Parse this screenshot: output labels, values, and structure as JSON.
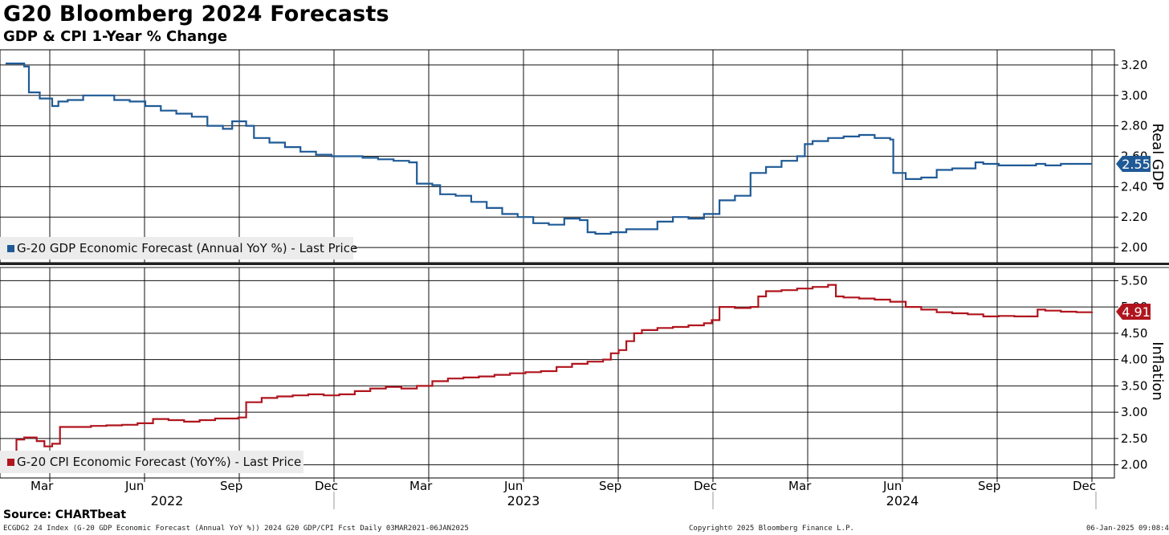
{
  "header": {
    "title": "G20 Bloomberg 2024 Forecasts",
    "subtitle": "GDP & CPI 1-Year % Change"
  },
  "footer": {
    "source": "Source: CHARTbeat",
    "index_text": "ECGDG2 24 Index (G-20 GDP Economic Forecast (Annual YoY %)) 2024 G20 GDP/CPI Fcst  Daily 03MAR2021-06JAN2025",
    "copyright": "Copyright© 2025 Bloomberg Finance L.P.",
    "timestamp": "06-Jan-2025 09:08:48"
  },
  "colors": {
    "gdp": "#1f5a96",
    "cpi": "#b0151e"
  },
  "chart_data": [
    {
      "type": "line",
      "name": "gdp",
      "ylabel": "Real GDP",
      "ylim": [
        1.9,
        3.3
      ],
      "yticks": [
        "2.00",
        "2.20",
        "2.40",
        "2.60",
        "2.80",
        "3.00",
        "3.20"
      ],
      "legend": "G-20 GDP Economic Forecast (Annual YoY %) - Last Price",
      "last_value": "2.55",
      "points": [
        [
          0,
          3.21
        ],
        [
          1.2,
          3.19
        ],
        [
          1.5,
          3.02
        ],
        [
          2.2,
          2.98
        ],
        [
          3,
          2.93
        ],
        [
          3.4,
          2.96
        ],
        [
          4,
          2.97
        ],
        [
          5,
          3.0
        ],
        [
          6,
          3.0
        ],
        [
          7,
          2.97
        ],
        [
          8,
          2.96
        ],
        [
          9,
          2.93
        ],
        [
          10,
          2.9
        ],
        [
          11,
          2.88
        ],
        [
          12,
          2.86
        ],
        [
          13,
          2.8
        ],
        [
          14,
          2.78
        ],
        [
          14.6,
          2.83
        ],
        [
          15.5,
          2.8
        ],
        [
          16,
          2.72
        ],
        [
          17,
          2.69
        ],
        [
          18,
          2.66
        ],
        [
          19,
          2.63
        ],
        [
          20,
          2.61
        ],
        [
          21,
          2.6
        ],
        [
          22,
          2.6
        ],
        [
          23,
          2.59
        ],
        [
          24,
          2.58
        ],
        [
          25,
          2.57
        ],
        [
          26,
          2.56
        ],
        [
          26.5,
          2.42
        ],
        [
          27.5,
          2.41
        ],
        [
          28,
          2.35
        ],
        [
          29,
          2.34
        ],
        [
          30,
          2.3
        ],
        [
          31,
          2.26
        ],
        [
          32,
          2.22
        ],
        [
          33,
          2.2
        ],
        [
          34,
          2.16
        ],
        [
          35,
          2.15
        ],
        [
          36,
          2.19
        ],
        [
          37,
          2.18
        ],
        [
          37.5,
          2.1
        ],
        [
          38,
          2.09
        ],
        [
          39,
          2.1
        ],
        [
          40,
          2.12
        ],
        [
          41,
          2.12
        ],
        [
          42,
          2.17
        ],
        [
          43,
          2.2
        ],
        [
          44,
          2.19
        ],
        [
          45,
          2.22
        ],
        [
          46,
          2.31
        ],
        [
          47,
          2.34
        ],
        [
          48,
          2.49
        ],
        [
          49,
          2.53
        ],
        [
          50,
          2.57
        ],
        [
          51,
          2.6
        ],
        [
          51.5,
          2.68
        ],
        [
          52,
          2.7
        ],
        [
          53,
          2.72
        ],
        [
          54,
          2.73
        ],
        [
          55,
          2.74
        ],
        [
          56,
          2.72
        ],
        [
          57,
          2.71
        ],
        [
          57.2,
          2.49
        ],
        [
          58,
          2.45
        ],
        [
          59,
          2.46
        ],
        [
          60,
          2.51
        ],
        [
          61,
          2.52
        ],
        [
          62,
          2.52
        ],
        [
          62.5,
          2.56
        ],
        [
          63,
          2.55
        ],
        [
          64,
          2.54
        ],
        [
          65,
          2.54
        ],
        [
          66,
          2.54
        ],
        [
          66.4,
          2.55
        ],
        [
          67,
          2.54
        ],
        [
          68,
          2.55
        ],
        [
          69,
          2.55
        ],
        [
          70,
          2.55
        ]
      ]
    },
    {
      "type": "line",
      "name": "cpi",
      "ylabel": "Inflation",
      "ylim": [
        1.75,
        5.75
      ],
      "yticks": [
        "2.00",
        "2.50",
        "3.00",
        "3.50",
        "4.00",
        "4.50",
        "5.00",
        "5.50"
      ],
      "legend": "G-20 CPI Economic Forecast (YoY%) - Last Price",
      "last_value": "4.91",
      "points": [
        [
          0,
          2.25
        ],
        [
          0.7,
          2.48
        ],
        [
          1.2,
          2.52
        ],
        [
          2,
          2.45
        ],
        [
          2.5,
          2.35
        ],
        [
          3,
          2.4
        ],
        [
          3.5,
          2.72
        ],
        [
          4.5,
          2.72
        ],
        [
          5.5,
          2.74
        ],
        [
          6.5,
          2.75
        ],
        [
          7.5,
          2.76
        ],
        [
          8.5,
          2.79
        ],
        [
          9.5,
          2.87
        ],
        [
          10.5,
          2.85
        ],
        [
          11.5,
          2.82
        ],
        [
          12.5,
          2.85
        ],
        [
          13.5,
          2.88
        ],
        [
          15,
          2.9
        ],
        [
          15.5,
          3.19
        ],
        [
          16.5,
          3.27
        ],
        [
          17.5,
          3.3
        ],
        [
          18.5,
          3.32
        ],
        [
          19.5,
          3.34
        ],
        [
          20.5,
          3.32
        ],
        [
          21.5,
          3.34
        ],
        [
          22.5,
          3.4
        ],
        [
          23.5,
          3.45
        ],
        [
          24.5,
          3.48
        ],
        [
          25.5,
          3.45
        ],
        [
          26.5,
          3.5
        ],
        [
          27.5,
          3.59
        ],
        [
          28.5,
          3.64
        ],
        [
          29.5,
          3.66
        ],
        [
          30.5,
          3.68
        ],
        [
          31.5,
          3.71
        ],
        [
          32.5,
          3.74
        ],
        [
          33.5,
          3.76
        ],
        [
          34.5,
          3.78
        ],
        [
          35.5,
          3.86
        ],
        [
          36.5,
          3.92
        ],
        [
          37.5,
          3.96
        ],
        [
          38.5,
          4.0
        ],
        [
          39,
          4.12
        ],
        [
          39.5,
          4.18
        ],
        [
          40,
          4.35
        ],
        [
          40.5,
          4.5
        ],
        [
          41,
          4.56
        ],
        [
          42,
          4.6
        ],
        [
          43,
          4.62
        ],
        [
          44,
          4.65
        ],
        [
          45,
          4.69
        ],
        [
          45.5,
          4.75
        ],
        [
          46,
          5.0
        ],
        [
          46.5,
          5.0
        ],
        [
          47,
          4.98
        ],
        [
          48,
          5.0
        ],
        [
          48.5,
          5.2
        ],
        [
          49,
          5.3
        ],
        [
          50,
          5.32
        ],
        [
          51,
          5.35
        ],
        [
          52,
          5.38
        ],
        [
          53,
          5.42
        ],
        [
          53.5,
          5.2
        ],
        [
          54,
          5.18
        ],
        [
          55,
          5.16
        ],
        [
          56,
          5.14
        ],
        [
          57,
          5.1
        ],
        [
          58,
          5.0
        ],
        [
          59,
          4.95
        ],
        [
          60,
          4.9
        ],
        [
          61,
          4.88
        ],
        [
          62,
          4.86
        ],
        [
          63,
          4.82
        ],
        [
          64,
          4.83
        ],
        [
          65,
          4.82
        ],
        [
          66,
          4.82
        ],
        [
          66.5,
          4.95
        ],
        [
          67,
          4.93
        ],
        [
          68,
          4.91
        ],
        [
          69,
          4.9
        ],
        [
          70,
          4.91
        ]
      ]
    }
  ],
  "x_axis": {
    "month_labels": [
      "Mar",
      "Jun",
      "Sep",
      "Dec",
      "Mar",
      "Jun",
      "Sep",
      "Dec",
      "Mar",
      "Jun",
      "Sep",
      "Dec"
    ],
    "years": [
      "2022",
      "2023",
      "2024"
    ]
  }
}
